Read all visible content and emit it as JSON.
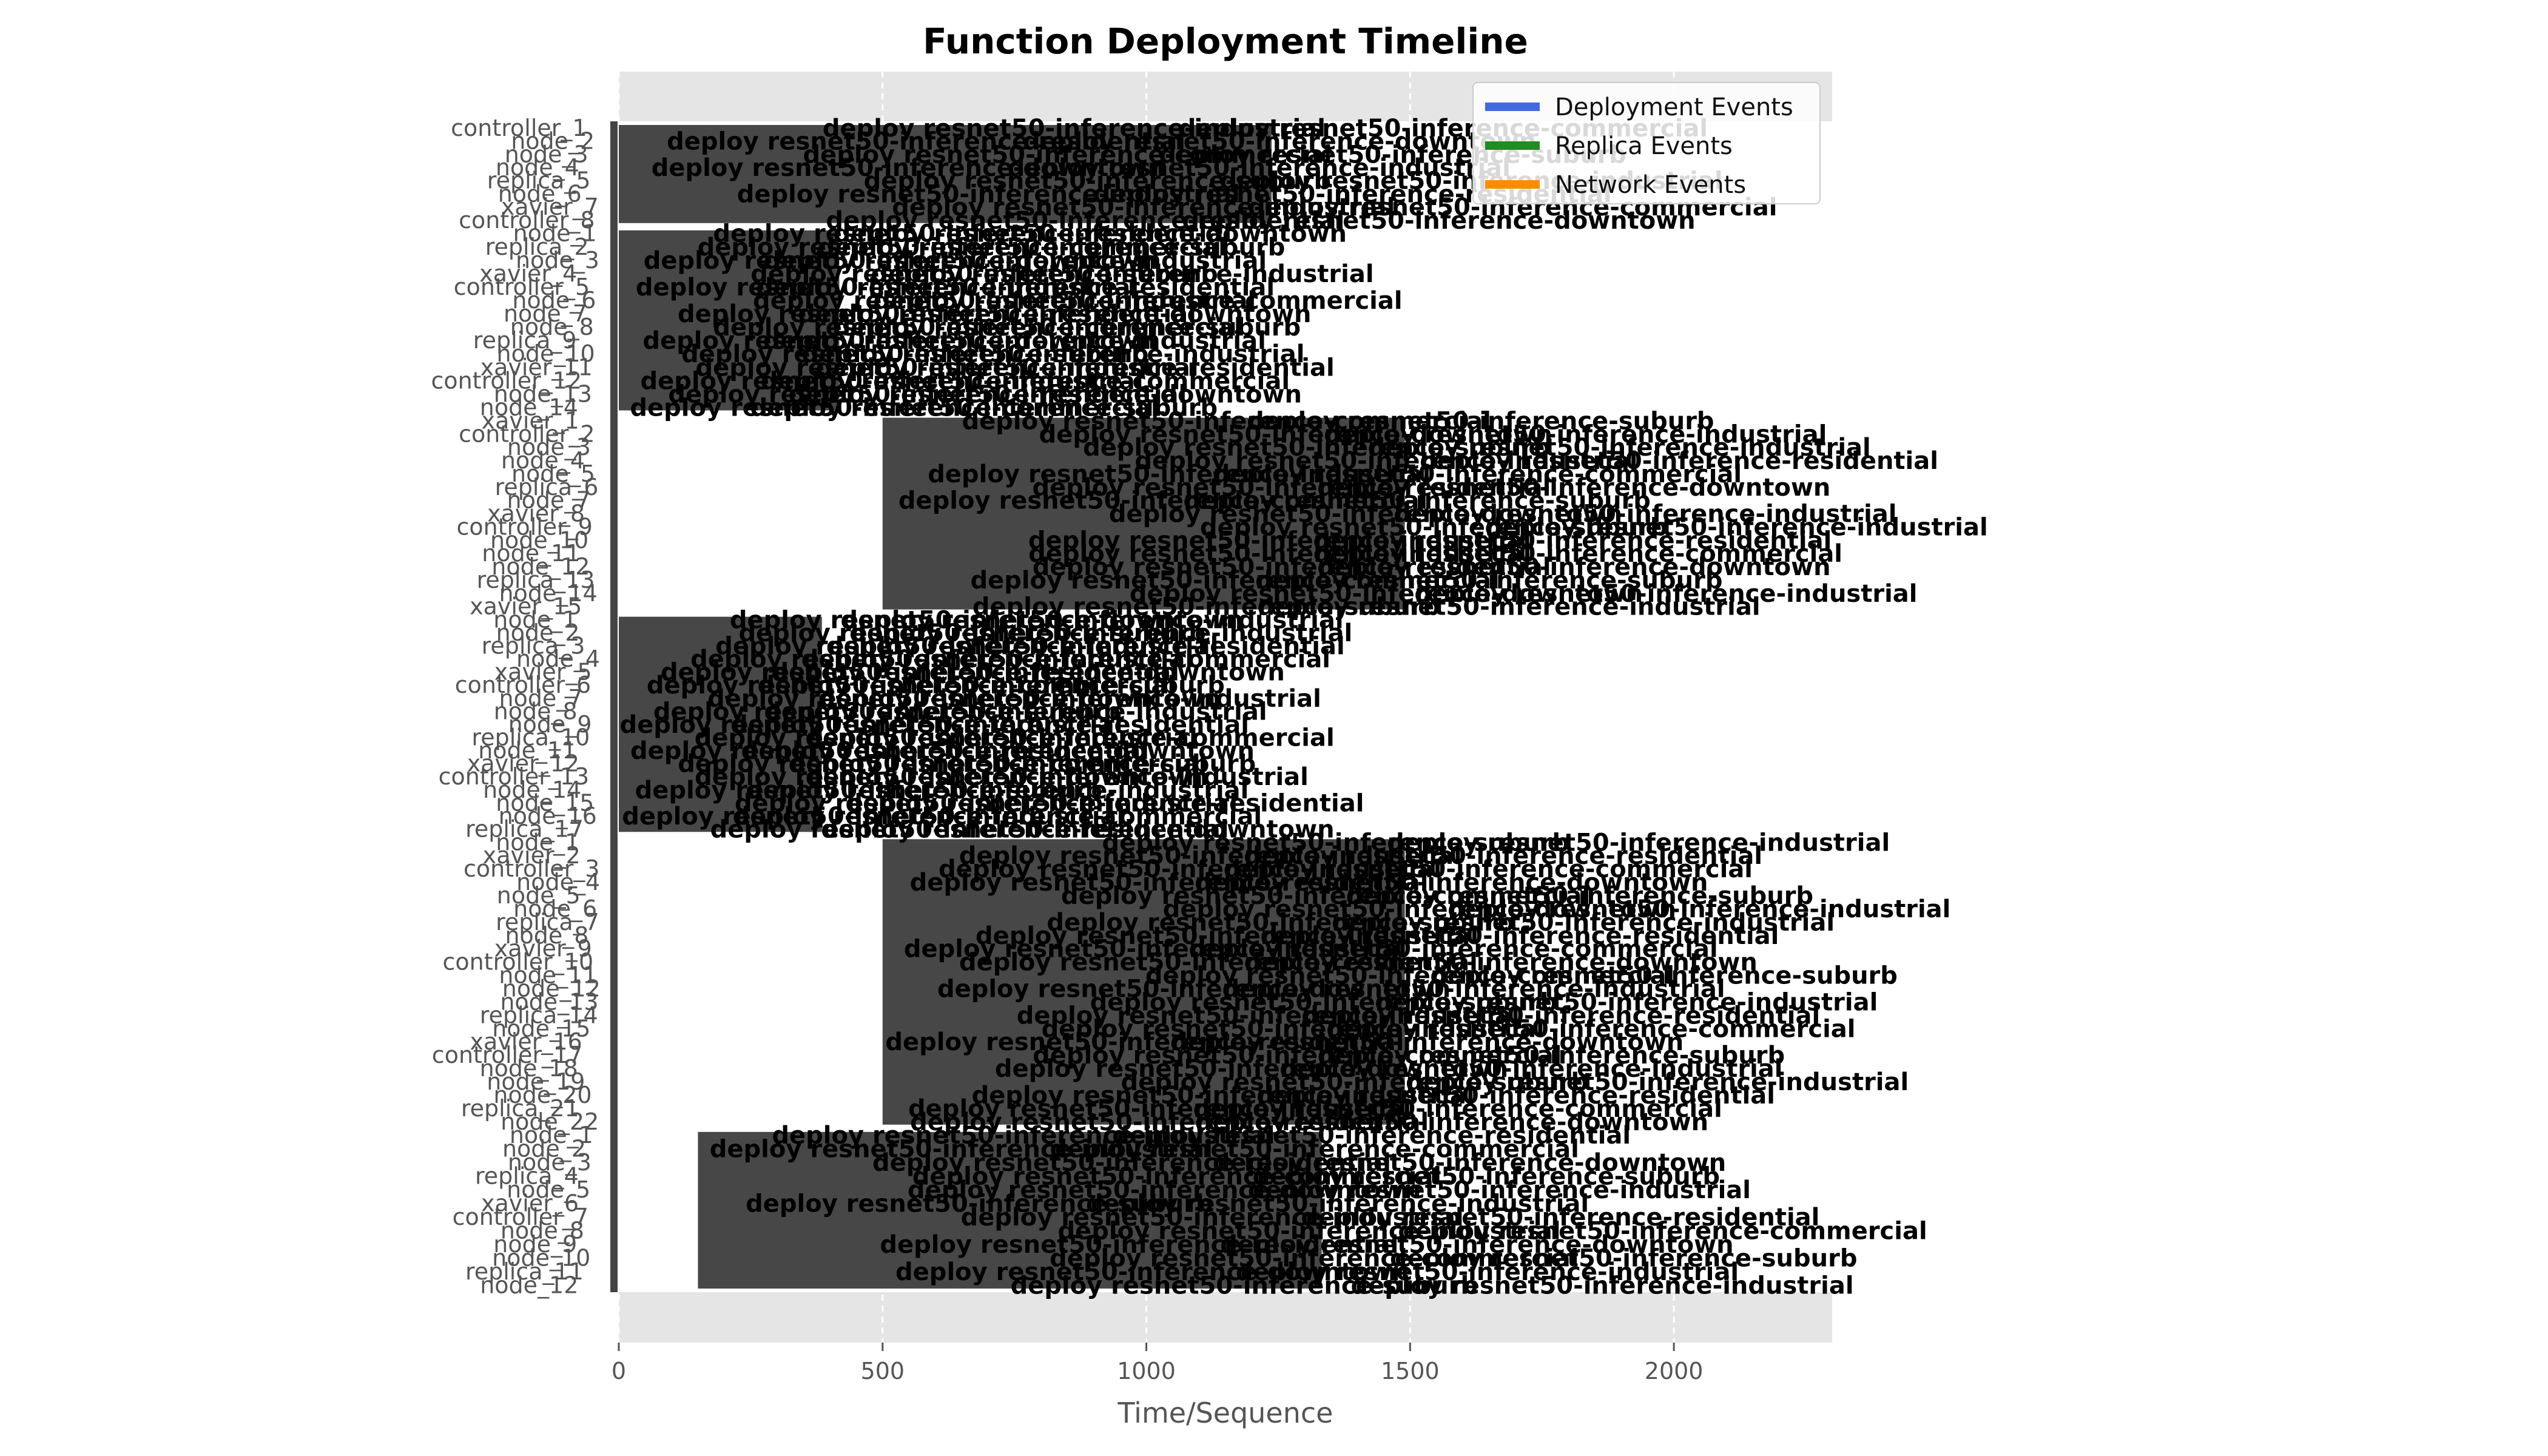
{
  "chart_data": {
    "type": "bar",
    "title": "Function Deployment Timeline",
    "xlabel": "Time/Sequence",
    "ylabel": "",
    "xlim": [
      0,
      2300
    ],
    "xticks": [
      0,
      500,
      1000,
      1500,
      2000
    ],
    "grid": true,
    "legend_position": "top-right",
    "legend": [
      {
        "name": "Deployment Events",
        "color": "#4169e1"
      },
      {
        "name": "Replica Events",
        "color": "#228b22"
      },
      {
        "name": "Network Events",
        "color": "#ff8c00"
      }
    ],
    "background_color": "#e5e5e5",
    "event_label_samples": [
      "deploy resnet50-inference-industrial",
      "deploy resnet50-inference-residential",
      "deploy resnet50-inference-commercial",
      "deploy resnet50-inference-downtown",
      "deploy resnet50-inference-suburb",
      "deploy resnet50-inference-industrial"
    ],
    "row_label_samples": [
      "controller",
      "node",
      "node",
      "node",
      "replica",
      "node",
      "xavier"
    ],
    "event_groups": [
      {
        "row_start": 0.0,
        "row_end": 0.09,
        "x_start": 0,
        "x_end": 2250,
        "label_prefix": "deploy"
      },
      {
        "row_start": 0.09,
        "row_end": 0.25,
        "x_start": 0,
        "x_end": 760,
        "label_prefix": "d"
      },
      {
        "row_start": 0.25,
        "row_end": 0.42,
        "x_start": 500,
        "x_end": 2300,
        "label_prefix": "deploy"
      },
      {
        "row_start": 0.42,
        "row_end": 0.61,
        "x_start": 0,
        "x_end": 700,
        "label_prefix": "d"
      },
      {
        "row_start": 0.61,
        "row_end": 0.86,
        "x_start": 500,
        "x_end": 2300,
        "label_prefix": "deploy"
      },
      {
        "row_start": 0.86,
        "row_end": 1.0,
        "x_start": 150,
        "x_end": 2300,
        "label_prefix": "deploy"
      }
    ]
  }
}
